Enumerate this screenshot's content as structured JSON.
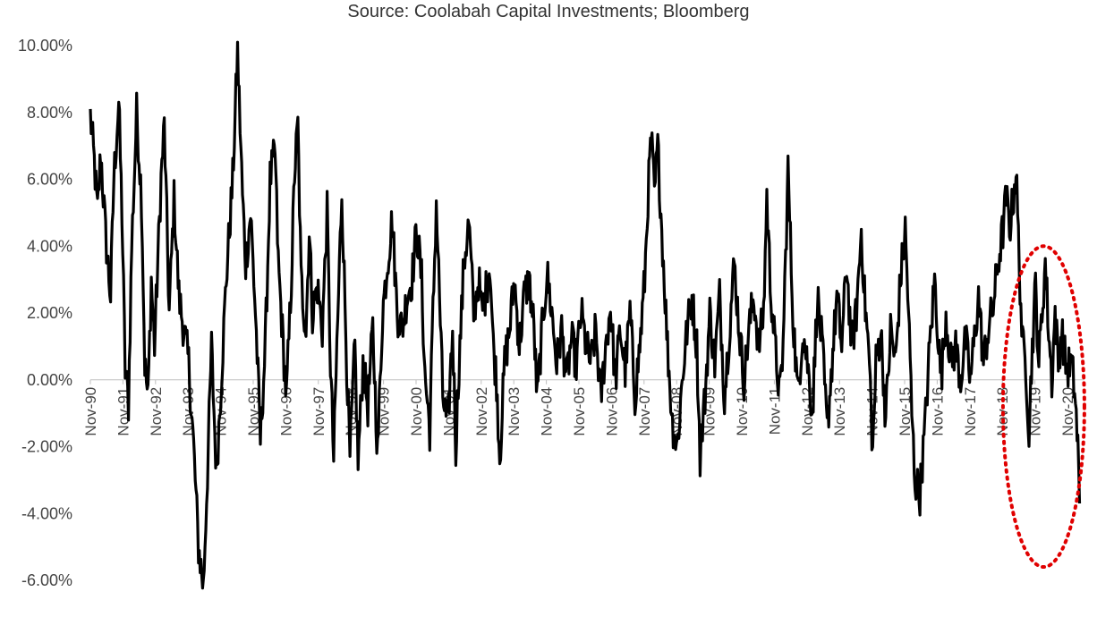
{
  "source_text": "Source: Coolabah Capital Investments; Bloomberg",
  "colors": {
    "line": "#000000",
    "zero_axis": "#bfbfbf",
    "highlight": "#e00000",
    "tick_text": "#444444"
  },
  "chart_data": {
    "type": "line",
    "title": "",
    "xlabel": "",
    "ylabel": "",
    "ylim": [
      -6.0,
      10.0
    ],
    "y_format": "percent_2dp",
    "grid": false,
    "legend": "none",
    "yticks": [
      "10.00%",
      "8.00%",
      "6.00%",
      "4.00%",
      "2.00%",
      "0.00%",
      "-2.00%",
      "-4.00%",
      "-6.00%"
    ],
    "ytick_values": [
      10,
      8,
      6,
      4,
      2,
      0,
      -2,
      -4,
      -6
    ],
    "xticks": [
      "Nov-90",
      "Nov-91",
      "Nov-92",
      "Nov-93",
      "Nov-94",
      "Nov-95",
      "Nov-96",
      "Nov-97",
      "Nov-98",
      "Nov-99",
      "Nov-00",
      "Nov-01",
      "Nov-02",
      "Nov-03",
      "Nov-04",
      "Nov-05",
      "Nov-06",
      "Nov-07",
      "Nov-08",
      "Nov-09",
      "Nov-10",
      "Nov-11",
      "Nov-12",
      "Nov-13",
      "Nov-14",
      "Nov-15",
      "Nov-16",
      "Nov-17",
      "Nov-18",
      "Nov-19",
      "Nov-20"
    ],
    "xrange_years": [
      1990.83,
      1991.83,
      1992.83,
      1993.83,
      1994.83,
      1995.83,
      1996.83,
      1997.83,
      1998.83,
      1999.83,
      2000.83,
      2001.83,
      2002.83,
      2003.83,
      2004.83,
      2005.83,
      2006.83,
      2007.83,
      2008.83,
      2009.83,
      2010.83,
      2011.83,
      2012.83,
      2013.83,
      2014.83,
      2015.83,
      2016.83,
      2017.83,
      2018.83,
      2019.83,
      2020.83
    ],
    "series": [
      {
        "values_note_free": true,
        "x_start": 1990.83,
        "x_end": 2021.2,
        "anchors": [
          [
            1990.83,
            7.9
          ],
          [
            1990.95,
            6.5
          ],
          [
            1991.05,
            5.0
          ],
          [
            1991.15,
            6.8
          ],
          [
            1991.3,
            4.3
          ],
          [
            1991.45,
            2.5
          ],
          [
            1991.55,
            6.0
          ],
          [
            1991.7,
            8.3
          ],
          [
            1991.8,
            5.0
          ],
          [
            1991.9,
            0.3
          ],
          [
            1992.0,
            -0.7
          ],
          [
            1992.1,
            4.0
          ],
          [
            1992.25,
            8.0
          ],
          [
            1992.4,
            5.5
          ],
          [
            1992.5,
            0.5
          ],
          [
            1992.6,
            -0.6
          ],
          [
            1992.7,
            3.0
          ],
          [
            1992.8,
            1.0
          ],
          [
            1993.0,
            6.0
          ],
          [
            1993.1,
            7.6
          ],
          [
            1993.25,
            2.0
          ],
          [
            1993.4,
            5.4
          ],
          [
            1993.55,
            2.5
          ],
          [
            1993.7,
            1.5
          ],
          [
            1993.85,
            0.5
          ],
          [
            1994.0,
            -2.0
          ],
          [
            1994.15,
            -5.0
          ],
          [
            1994.3,
            -6.2
          ],
          [
            1994.4,
            -3.5
          ],
          [
            1994.55,
            1.0
          ],
          [
            1994.7,
            -2.8
          ],
          [
            1994.85,
            0.0
          ],
          [
            1995.0,
            3.0
          ],
          [
            1995.2,
            6.0
          ],
          [
            1995.35,
            9.8
          ],
          [
            1995.5,
            5.5
          ],
          [
            1995.6,
            3.5
          ],
          [
            1995.75,
            5.0
          ],
          [
            1995.9,
            2.0
          ],
          [
            1996.05,
            -1.8
          ],
          [
            1996.2,
            1.0
          ],
          [
            1996.35,
            6.0
          ],
          [
            1996.5,
            6.8
          ],
          [
            1996.6,
            3.5
          ],
          [
            1996.75,
            1.0
          ],
          [
            1996.85,
            -0.6
          ],
          [
            1997.0,
            3.0
          ],
          [
            1997.1,
            6.2
          ],
          [
            1997.2,
            7.6
          ],
          [
            1997.3,
            3.0
          ],
          [
            1997.45,
            1.5
          ],
          [
            1997.55,
            4.5
          ],
          [
            1997.65,
            2.0
          ],
          [
            1997.8,
            2.8
          ],
          [
            1997.95,
            1.5
          ],
          [
            1998.1,
            5.0
          ],
          [
            1998.2,
            0.5
          ],
          [
            1998.3,
            -2.4
          ],
          [
            1998.4,
            1.0
          ],
          [
            1998.55,
            5.7
          ],
          [
            1998.7,
            0.5
          ],
          [
            1998.8,
            -2.4
          ],
          [
            1998.95,
            1.0
          ],
          [
            1999.05,
            -2.5
          ],
          [
            1999.2,
            0.5
          ],
          [
            1999.35,
            -0.8
          ],
          [
            1999.5,
            1.5
          ],
          [
            1999.65,
            -2.2
          ],
          [
            1999.8,
            2.0
          ],
          [
            1999.95,
            3.5
          ],
          [
            2000.1,
            4.8
          ],
          [
            2000.25,
            2.0
          ],
          [
            2000.4,
            1.5
          ],
          [
            2000.55,
            2.5
          ],
          [
            2000.7,
            3.0
          ],
          [
            2000.85,
            4.5
          ],
          [
            2001.0,
            3.0
          ],
          [
            2001.1,
            0.2
          ],
          [
            2001.25,
            -1.5
          ],
          [
            2001.35,
            2.0
          ],
          [
            2001.45,
            5.3
          ],
          [
            2001.55,
            2.5
          ],
          [
            2001.65,
            -0.5
          ],
          [
            2001.8,
            -1.5
          ],
          [
            2001.95,
            1.5
          ],
          [
            2002.05,
            -2.0
          ],
          [
            2002.15,
            0.5
          ],
          [
            2002.3,
            3.5
          ],
          [
            2002.45,
            4.7
          ],
          [
            2002.6,
            2.0
          ],
          [
            2002.75,
            3.0
          ],
          [
            2002.85,
            2.0
          ],
          [
            2003.0,
            2.8
          ],
          [
            2003.1,
            3.5
          ],
          [
            2003.2,
            1.0
          ],
          [
            2003.3,
            0.0
          ],
          [
            2003.4,
            -2.3
          ],
          [
            2003.55,
            0.5
          ],
          [
            2003.7,
            1.5
          ],
          [
            2003.85,
            3.0
          ],
          [
            2004.0,
            1.0
          ],
          [
            2004.15,
            2.5
          ],
          [
            2004.3,
            3.0
          ],
          [
            2004.45,
            1.5
          ],
          [
            2004.55,
            -0.6
          ],
          [
            2004.7,
            1.5
          ],
          [
            2004.85,
            3.2
          ],
          [
            2005.0,
            2.0
          ],
          [
            2005.15,
            0.5
          ],
          [
            2005.3,
            1.5
          ],
          [
            2005.45,
            0.0
          ],
          [
            2005.6,
            1.2
          ],
          [
            2005.75,
            0.5
          ],
          [
            2005.9,
            2.0
          ],
          [
            2006.05,
            1.0
          ],
          [
            2006.2,
            0.5
          ],
          [
            2006.35,
            1.5
          ],
          [
            2006.5,
            -0.6
          ],
          [
            2006.65,
            1.0
          ],
          [
            2006.8,
            2.2
          ],
          [
            2006.95,
            0.0
          ],
          [
            2007.1,
            1.5
          ],
          [
            2007.25,
            0.3
          ],
          [
            2007.4,
            2.0
          ],
          [
            2007.55,
            -0.5
          ],
          [
            2007.7,
            1.0
          ],
          [
            2007.85,
            3.0
          ],
          [
            2007.95,
            5.5
          ],
          [
            2008.05,
            7.3
          ],
          [
            2008.15,
            5.5
          ],
          [
            2008.25,
            7.0
          ],
          [
            2008.4,
            4.0
          ],
          [
            2008.55,
            1.0
          ],
          [
            2008.7,
            -1.3
          ],
          [
            2008.85,
            -2.0
          ],
          [
            2009.0,
            0.0
          ],
          [
            2009.15,
            1.5
          ],
          [
            2009.3,
            2.5
          ],
          [
            2009.45,
            1.0
          ],
          [
            2009.55,
            -2.3
          ],
          [
            2009.7,
            -0.5
          ],
          [
            2009.85,
            2.0
          ],
          [
            2010.0,
            0.5
          ],
          [
            2010.15,
            2.5
          ],
          [
            2010.3,
            -0.5
          ],
          [
            2010.45,
            1.5
          ],
          [
            2010.6,
            3.5
          ],
          [
            2010.75,
            1.5
          ],
          [
            2010.9,
            0.0
          ],
          [
            2011.05,
            1.5
          ],
          [
            2011.2,
            2.5
          ],
          [
            2011.35,
            1.0
          ],
          [
            2011.5,
            2.0
          ],
          [
            2011.6,
            5.5
          ],
          [
            2011.7,
            3.0
          ],
          [
            2011.85,
            1.0
          ],
          [
            2012.0,
            -0.5
          ],
          [
            2012.1,
            1.0
          ],
          [
            2012.25,
            6.3
          ],
          [
            2012.4,
            2.0
          ],
          [
            2012.55,
            -0.5
          ],
          [
            2012.7,
            1.5
          ],
          [
            2012.85,
            0.5
          ],
          [
            2013.0,
            -1.0
          ],
          [
            2013.15,
            2.5
          ],
          [
            2013.3,
            1.0
          ],
          [
            2013.45,
            -1.5
          ],
          [
            2013.6,
            0.5
          ],
          [
            2013.75,
            2.5
          ],
          [
            2013.9,
            1.0
          ],
          [
            2014.05,
            3.5
          ],
          [
            2014.2,
            1.0
          ],
          [
            2014.35,
            2.0
          ],
          [
            2014.5,
            4.5
          ],
          [
            2014.6,
            2.5
          ],
          [
            2014.75,
            0.5
          ],
          [
            2014.85,
            -2.2
          ],
          [
            2014.95,
            0.5
          ],
          [
            2015.1,
            1.5
          ],
          [
            2015.25,
            -1.2
          ],
          [
            2015.4,
            1.5
          ],
          [
            2015.55,
            0.5
          ],
          [
            2015.7,
            3.0
          ],
          [
            2015.85,
            4.5
          ],
          [
            2015.95,
            2.0
          ],
          [
            2016.05,
            -1.0
          ],
          [
            2016.15,
            -3.0
          ],
          [
            2016.3,
            -3.4
          ],
          [
            2016.45,
            -1.5
          ],
          [
            2016.6,
            1.0
          ],
          [
            2016.75,
            3.0
          ],
          [
            2016.85,
            1.5
          ],
          [
            2016.95,
            0.0
          ],
          [
            2017.1,
            2.0
          ],
          [
            2017.25,
            0.5
          ],
          [
            2017.4,
            1.0
          ],
          [
            2017.55,
            0.0
          ],
          [
            2017.7,
            1.2
          ],
          [
            2017.85,
            0.0
          ],
          [
            2018.0,
            1.5
          ],
          [
            2018.1,
            2.5
          ],
          [
            2018.25,
            0.5
          ],
          [
            2018.4,
            1.5
          ],
          [
            2018.55,
            2.2
          ],
          [
            2018.7,
            3.5
          ],
          [
            2018.85,
            4.5
          ],
          [
            2018.95,
            5.5
          ],
          [
            2019.05,
            4.5
          ],
          [
            2019.15,
            5.3
          ],
          [
            2019.25,
            6.3
          ],
          [
            2019.35,
            3.5
          ],
          [
            2019.45,
            1.0
          ],
          [
            2019.55,
            0.5
          ],
          [
            2019.65,
            -1.5
          ],
          [
            2019.75,
            1.0
          ],
          [
            2019.85,
            2.8
          ],
          [
            2019.95,
            0.5
          ],
          [
            2020.05,
            2.0
          ],
          [
            2020.15,
            3.5
          ],
          [
            2020.25,
            1.5
          ],
          [
            2020.35,
            0.0
          ],
          [
            2020.45,
            2.0
          ],
          [
            2020.55,
            0.5
          ],
          [
            2020.65,
            1.5
          ],
          [
            2020.8,
            0.3
          ],
          [
            2020.95,
            0.5
          ],
          [
            2021.05,
            -0.3
          ],
          [
            2021.15,
            -2.0
          ],
          [
            2021.2,
            -3.7
          ]
        ]
      }
    ],
    "annotations": [
      {
        "type": "ellipse-highlight",
        "style": "dotted",
        "color": "#e00000",
        "x_range": [
          2018.85,
          2021.35
        ],
        "y_range": [
          -5.6,
          4.0
        ]
      }
    ]
  }
}
